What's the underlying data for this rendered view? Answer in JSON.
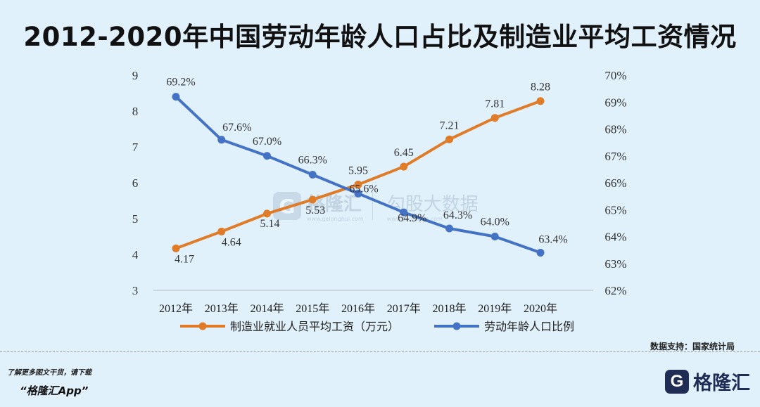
{
  "title": "2012-2020年中国劳动年龄人口占比及制造业平均工资情况",
  "chart_data": {
    "type": "line",
    "categories": [
      "2012年",
      "2013年",
      "2014年",
      "2015年",
      "2016年",
      "2017年",
      "2018年",
      "2019年",
      "2020年"
    ],
    "series": [
      {
        "name": "制造业就业人员平均工资（万元）",
        "axis": "left",
        "color": "#e07b28",
        "values": [
          4.17,
          4.64,
          5.14,
          5.53,
          5.95,
          6.45,
          7.21,
          7.81,
          8.28
        ],
        "labels": [
          "4.17",
          "4.64",
          "5.14",
          "5.53",
          "5.95",
          "6.45",
          "7.21",
          "7.81",
          "8.28"
        ]
      },
      {
        "name": "劳动年龄人口比例",
        "axis": "right",
        "color": "#4472c4",
        "values": [
          69.2,
          67.6,
          67.0,
          66.3,
          65.6,
          64.9,
          64.3,
          64.0,
          63.4
        ],
        "labels": [
          "69.2%",
          "67.6%",
          "67.0%",
          "66.3%",
          "65.6%",
          "64.9%",
          "64.3%",
          "64.0%",
          "63.4%"
        ]
      }
    ],
    "left_axis": {
      "min": 3,
      "max": 9,
      "ticks": [
        "3",
        "4",
        "5",
        "6",
        "7",
        "8",
        "9"
      ]
    },
    "right_axis": {
      "min": 62,
      "max": 70,
      "ticks": [
        "62%",
        "63%",
        "64%",
        "65%",
        "66%",
        "67%",
        "68%",
        "69%",
        "70%"
      ]
    },
    "legend_position": "bottom"
  },
  "source": "数据支持：国家统计局",
  "watermark": {
    "name": "格隆汇",
    "url": "www.gelonghui.com",
    "name2": "勾股大数据",
    "url2": "www.gogudata.com"
  },
  "footer": {
    "note": "了解更多图文干货，请下载",
    "app": "“格隆汇App”",
    "logo_letter": "G",
    "logo_text": "格隆汇"
  }
}
